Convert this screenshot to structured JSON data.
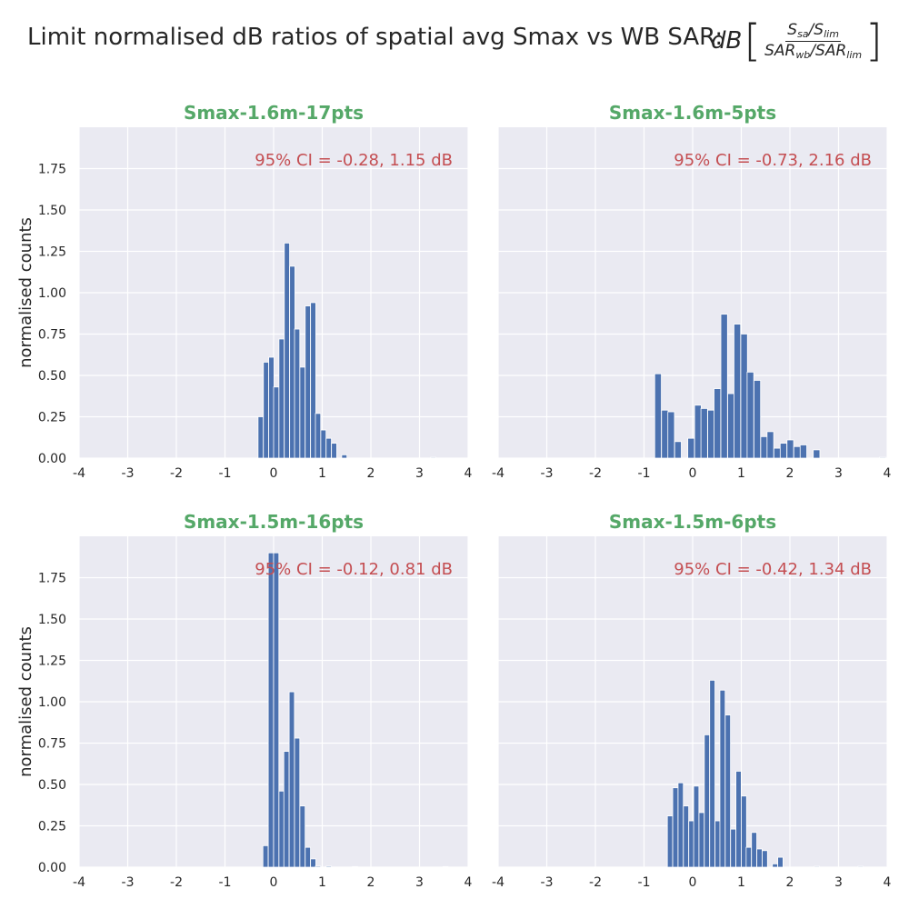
{
  "figure": {
    "suptitle": "Limit normalised dB ratios of spatial avg Smax vs WB SAR:",
    "formula": {
      "prefix": "dB",
      "num_a": "S",
      "num_a_sub": "sa",
      "num_b": "/S",
      "num_b_sub": "lim",
      "den_a": "SAR",
      "den_a_sub": "wb",
      "den_b": "/SAR",
      "den_b_sub": "lim"
    }
  },
  "style": {
    "bg": "#eaeaf2",
    "grid": "#ffffff",
    "bar": "#4c72b0",
    "title_color": "#55a868",
    "annotation_color": "#c44e52",
    "text": "#262626"
  },
  "chart_data": [
    {
      "type": "bar",
      "title": "Smax-1.6m-17pts",
      "annotation": "95% CI = -0.28, 1.15 dB",
      "ylabel": "normalised counts",
      "xlim": [
        -4,
        4
      ],
      "ylim": [
        0,
        2.0
      ],
      "xticks": [
        -4,
        -3,
        -2,
        -1,
        0,
        1,
        2,
        3,
        4
      ],
      "yticks": [
        0.0,
        0.25,
        0.5,
        0.75,
        1.0,
        1.25,
        1.5,
        1.75
      ],
      "bin_width": 0.108,
      "bins": [
        {
          "x": -0.32,
          "y": 0.25
        },
        {
          "x": -0.21,
          "y": 0.58
        },
        {
          "x": -0.1,
          "y": 0.61
        },
        {
          "x": 0.0,
          "y": 0.43
        },
        {
          "x": 0.11,
          "y": 0.72
        },
        {
          "x": 0.22,
          "y": 1.3
        },
        {
          "x": 0.33,
          "y": 1.16
        },
        {
          "x": 0.43,
          "y": 0.78
        },
        {
          "x": 0.54,
          "y": 0.55
        },
        {
          "x": 0.65,
          "y": 0.92
        },
        {
          "x": 0.76,
          "y": 0.94
        },
        {
          "x": 0.86,
          "y": 0.27
        },
        {
          "x": 0.97,
          "y": 0.17
        },
        {
          "x": 1.08,
          "y": 0.12
        },
        {
          "x": 1.19,
          "y": 0.09
        },
        {
          "x": 1.4,
          "y": 0.02
        },
        {
          "x": 3.23,
          "y": 0.005
        }
      ]
    },
    {
      "type": "bar",
      "title": "Smax-1.6m-5pts",
      "annotation": "95% CI = -0.73, 2.16 dB",
      "ylabel": "",
      "xlim": [
        -4,
        4
      ],
      "ylim": [
        0,
        2.0
      ],
      "xticks": [
        -4,
        -3,
        -2,
        -1,
        0,
        1,
        2,
        3,
        4
      ],
      "yticks": [
        0.0,
        0.25,
        0.5,
        0.75,
        1.0,
        1.25,
        1.5,
        1.75
      ],
      "bin_width": 0.136,
      "bins": [
        {
          "x": -0.78,
          "y": 0.51
        },
        {
          "x": -0.64,
          "y": 0.29
        },
        {
          "x": -0.51,
          "y": 0.28
        },
        {
          "x": -0.37,
          "y": 0.1
        },
        {
          "x": -0.1,
          "y": 0.12
        },
        {
          "x": 0.04,
          "y": 0.32
        },
        {
          "x": 0.17,
          "y": 0.3
        },
        {
          "x": 0.31,
          "y": 0.29
        },
        {
          "x": 0.44,
          "y": 0.42
        },
        {
          "x": 0.58,
          "y": 0.87
        },
        {
          "x": 0.72,
          "y": 0.39
        },
        {
          "x": 0.85,
          "y": 0.81
        },
        {
          "x": 0.99,
          "y": 0.75
        },
        {
          "x": 1.12,
          "y": 0.52
        },
        {
          "x": 1.26,
          "y": 0.47
        },
        {
          "x": 1.4,
          "y": 0.13
        },
        {
          "x": 1.53,
          "y": 0.16
        },
        {
          "x": 1.67,
          "y": 0.06
        },
        {
          "x": 1.8,
          "y": 0.09
        },
        {
          "x": 1.94,
          "y": 0.11
        },
        {
          "x": 2.08,
          "y": 0.07
        },
        {
          "x": 2.21,
          "y": 0.08
        },
        {
          "x": 2.48,
          "y": 0.05
        },
        {
          "x": 3.84,
          "y": 0.005
        }
      ]
    },
    {
      "type": "bar",
      "title": "Smax-1.5m-16pts",
      "annotation": "95% CI = -0.12, 0.81 dB",
      "ylabel": "normalised counts",
      "xlim": [
        -4,
        4
      ],
      "ylim": [
        0,
        2.0
      ],
      "xticks": [
        -4,
        -3,
        -2,
        -1,
        0,
        1,
        2,
        3,
        4
      ],
      "yticks": [
        0.0,
        0.25,
        0.5,
        0.75,
        1.0,
        1.25,
        1.5,
        1.75
      ],
      "bin_width": 0.108,
      "bins": [
        {
          "x": -0.22,
          "y": 0.13
        },
        {
          "x": -0.11,
          "y": 1.9
        },
        {
          "x": 0.0,
          "y": 1.9
        },
        {
          "x": 0.11,
          "y": 0.46
        },
        {
          "x": 0.21,
          "y": 0.7
        },
        {
          "x": 0.32,
          "y": 1.06
        },
        {
          "x": 0.43,
          "y": 0.78
        },
        {
          "x": 0.54,
          "y": 0.37
        },
        {
          "x": 0.65,
          "y": 0.12
        },
        {
          "x": 0.76,
          "y": 0.05
        },
        {
          "x": 0.86,
          "y": 0.006
        },
        {
          "x": 1.08,
          "y": 0.006
        },
        {
          "x": 1.62,
          "y": 0.004
        },
        {
          "x": 3.48,
          "y": 0.004
        }
      ]
    },
    {
      "type": "bar",
      "title": "Smax-1.5m-6pts",
      "annotation": "95% CI = -0.42, 1.34 dB",
      "ylabel": "",
      "xlim": [
        -4,
        4
      ],
      "ylim": [
        0,
        2.0
      ],
      "xticks": [
        -4,
        -3,
        -2,
        -1,
        0,
        1,
        2,
        3,
        4
      ],
      "yticks": [
        0.0,
        0.25,
        0.5,
        0.75,
        1.0,
        1.25,
        1.5,
        1.75
      ],
      "bin_width": 0.108,
      "bins": [
        {
          "x": -0.52,
          "y": 0.31
        },
        {
          "x": -0.41,
          "y": 0.48
        },
        {
          "x": -0.3,
          "y": 0.51
        },
        {
          "x": -0.19,
          "y": 0.37
        },
        {
          "x": -0.08,
          "y": 0.28
        },
        {
          "x": 0.02,
          "y": 0.49
        },
        {
          "x": 0.13,
          "y": 0.33
        },
        {
          "x": 0.24,
          "y": 0.8
        },
        {
          "x": 0.35,
          "y": 1.13
        },
        {
          "x": 0.46,
          "y": 0.28
        },
        {
          "x": 0.56,
          "y": 1.07
        },
        {
          "x": 0.67,
          "y": 0.92
        },
        {
          "x": 0.78,
          "y": 0.23
        },
        {
          "x": 0.89,
          "y": 0.58
        },
        {
          "x": 1.0,
          "y": 0.43
        },
        {
          "x": 1.1,
          "y": 0.12
        },
        {
          "x": 1.21,
          "y": 0.21
        },
        {
          "x": 1.32,
          "y": 0.11
        },
        {
          "x": 1.43,
          "y": 0.1
        },
        {
          "x": 1.64,
          "y": 0.02
        },
        {
          "x": 1.75,
          "y": 0.06
        },
        {
          "x": 2.5,
          "y": 0.005
        },
        {
          "x": 3.4,
          "y": 0.005
        }
      ]
    }
  ]
}
